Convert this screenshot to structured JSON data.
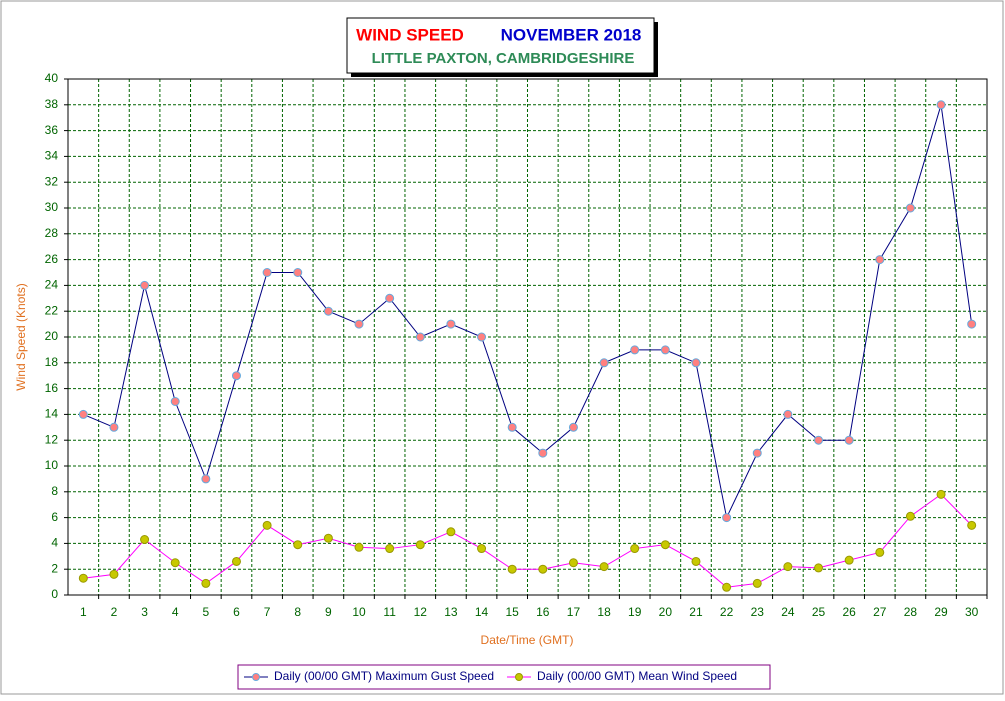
{
  "chart_data": {
    "type": "line",
    "title": "WIND SPEED",
    "title_period": "NOVEMBER 2018",
    "subtitle": "LITTLE PAXTON, CAMBRIDGESHIRE",
    "x_label": "Date/Time (GMT)",
    "y_label": "Wind Speed (Knots)",
    "categories": [
      "1",
      "2",
      "3",
      "4",
      "5",
      "6",
      "7",
      "8",
      "9",
      "10",
      "11",
      "12",
      "13",
      "14",
      "15",
      "16",
      "17",
      "18",
      "19",
      "20",
      "21",
      "22",
      "23",
      "24",
      "25",
      "26",
      "27",
      "28",
      "29",
      "30"
    ],
    "series": [
      {
        "name": "Daily (00/00 GMT) Maximum Gust Speed",
        "color": "#000080",
        "marker_color": "#ff8080",
        "values": [
          14,
          13,
          24,
          15,
          9,
          17,
          25,
          25,
          22,
          21,
          23,
          20,
          21,
          20,
          13,
          11,
          13,
          18,
          19,
          19,
          18,
          6,
          11,
          14,
          12,
          12,
          26,
          30,
          38,
          21
        ]
      },
      {
        "name": "Daily (00/00 GMT) Mean Wind Speed",
        "color": "#ff00ff",
        "marker_color": "#c8c800",
        "values": [
          1.3,
          1.6,
          4.3,
          2.5,
          0.9,
          2.6,
          5.4,
          3.9,
          4.4,
          3.7,
          3.6,
          3.9,
          4.9,
          3.6,
          2.0,
          2.0,
          2.5,
          2.2,
          3.6,
          3.9,
          2.6,
          0.6,
          0.9,
          2.2,
          2.1,
          2.7,
          3.3,
          6.1,
          7.8,
          5.4
        ]
      }
    ],
    "ylim": [
      0,
      40
    ],
    "yticks": [
      0,
      2,
      4,
      6,
      8,
      10,
      12,
      14,
      16,
      18,
      20,
      22,
      24,
      26,
      28,
      30,
      32,
      34,
      36,
      38,
      40
    ],
    "grid": true,
    "legend": "bottom"
  }
}
